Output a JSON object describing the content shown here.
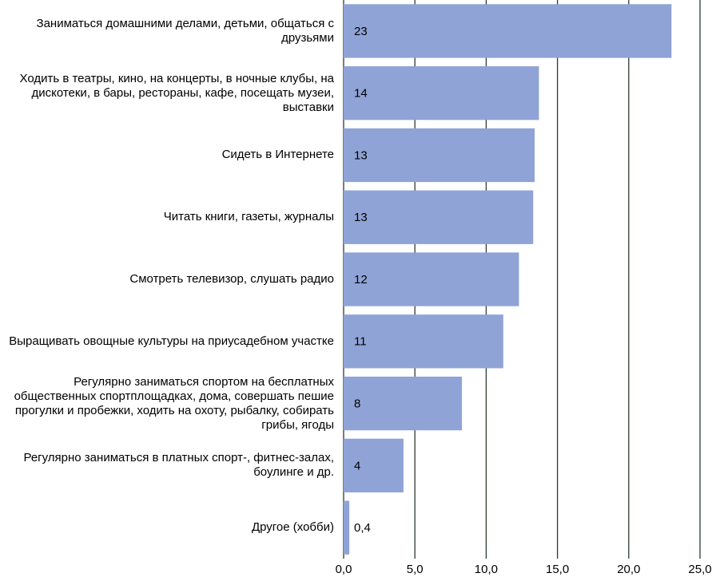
{
  "chart_data": {
    "type": "bar",
    "orientation": "horizontal",
    "categories": [
      "Заниматься домашними делами, детьми, общаться с друзьями",
      "Ходить в театры, кино, на концерты, в ночные клубы, на дискотеки, в бары, рестораны, кафе, посещать музеи, выставки",
      "Сидеть в Интернете",
      "Читать книги, газеты, журналы",
      "Смотреть телевизор, слушать радио",
      "Выращивать овощные культуры на приусадебном участке",
      "Регулярно заниматься спортом на бесплатных общественных спортплощадках, дома, совершать пешие прогулки и пробежки, ходить на охоту, рыбалку, собирать грибы, ягоды",
      "Регулярно заниматься в платных спорт-, фитнес-залах, боулинге и др.",
      "Другое (хобби)"
    ],
    "values": [
      23.0,
      13.7,
      13.4,
      13.3,
      12.3,
      11.2,
      8.3,
      4.2,
      0.4
    ],
    "value_labels": [
      "23",
      "14",
      "13",
      "13",
      "12",
      "11",
      "8",
      "4",
      "0,4"
    ],
    "color": "#8fa3d6",
    "xlim": [
      0,
      25
    ],
    "xticks": [
      {
        "value": 0,
        "label": "0,0"
      },
      {
        "value": 5,
        "label": "5,0"
      },
      {
        "value": 10,
        "label": "10,0"
      },
      {
        "value": 15,
        "label": "15,0"
      },
      {
        "value": 20,
        "label": "20,0"
      },
      {
        "value": 25,
        "label": "25,0"
      }
    ],
    "grid": true
  }
}
